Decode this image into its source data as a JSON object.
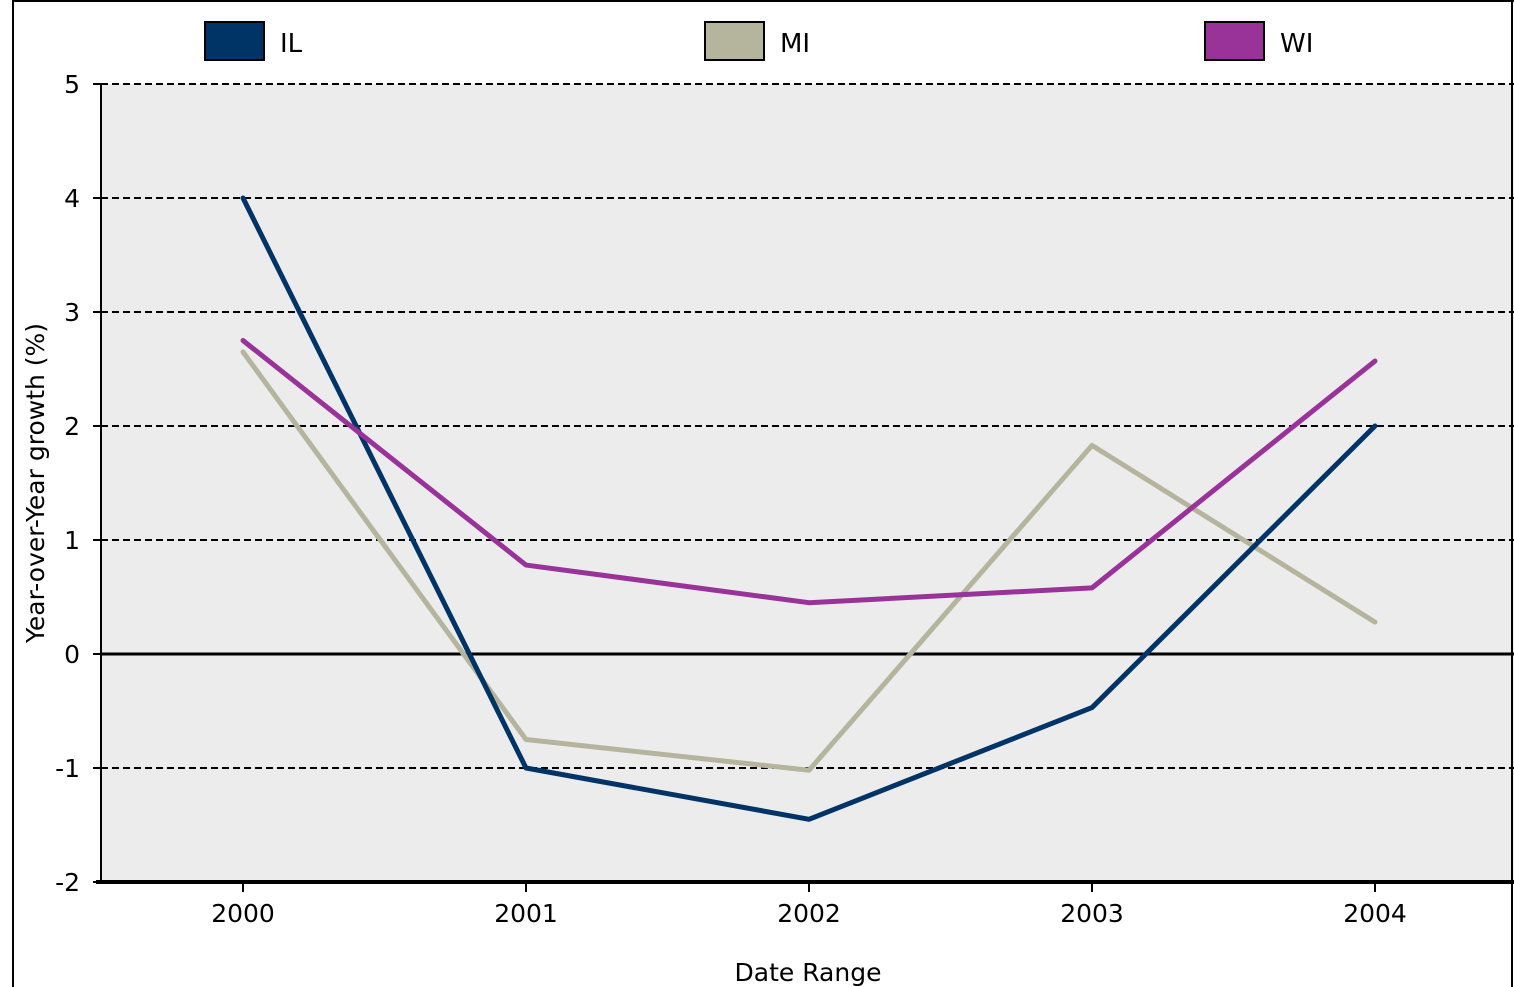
{
  "chart_data": {
    "type": "line",
    "title": "",
    "xlabel": "Date Range",
    "ylabel": "Year-over-Year growth (%)",
    "categories": [
      "2000",
      "2001",
      "2002",
      "2003",
      "2004"
    ],
    "y_ticks": [
      "5",
      "4",
      "3",
      "2",
      "1",
      "0",
      "-1",
      "-2"
    ],
    "ylim": [
      -2,
      5
    ],
    "grid": true,
    "legend_position": "top",
    "series": [
      {
        "name": "IL",
        "color": "#003366",
        "values": [
          4.0,
          -1.0,
          -1.45,
          -0.47,
          2.0
        ]
      },
      {
        "name": "MI",
        "color": "#B5B59E",
        "values": [
          2.65,
          -0.75,
          -1.02,
          1.83,
          0.28
        ]
      },
      {
        "name": "WI",
        "color": "#993399",
        "values": [
          2.75,
          0.78,
          0.45,
          0.58,
          2.57
        ]
      }
    ]
  }
}
